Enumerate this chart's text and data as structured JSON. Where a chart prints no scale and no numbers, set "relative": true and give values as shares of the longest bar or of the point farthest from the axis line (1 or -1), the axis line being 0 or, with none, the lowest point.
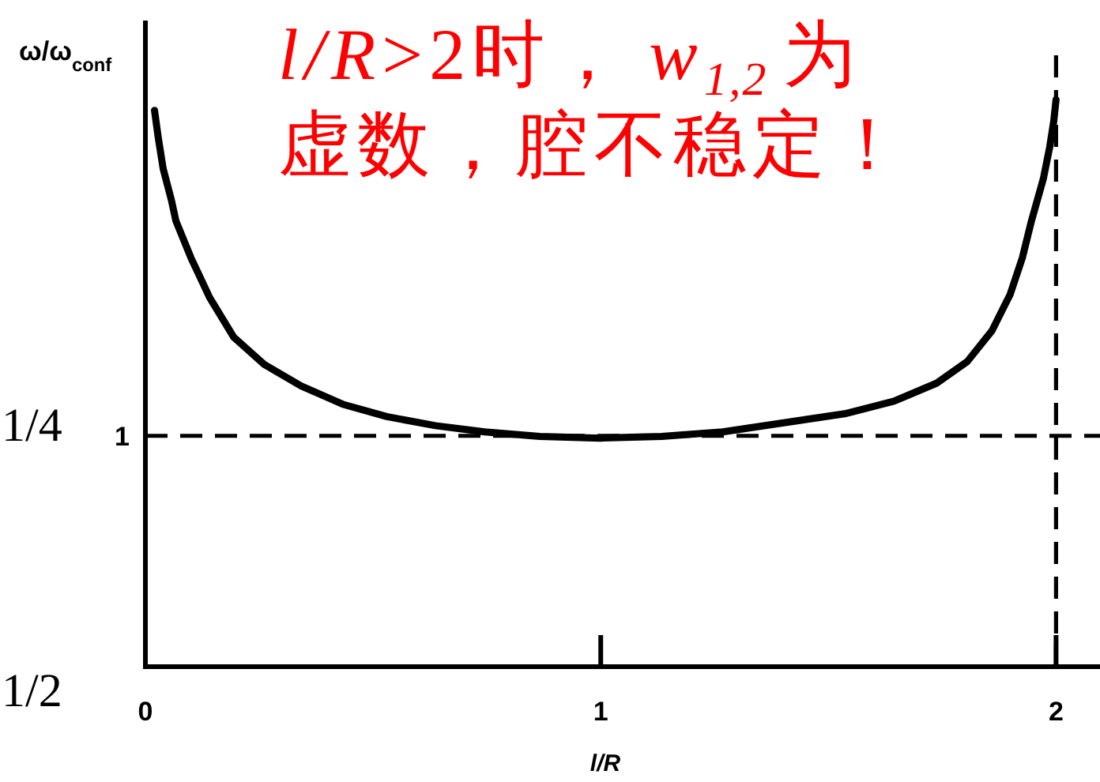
{
  "chart_data": {
    "type": "line",
    "title": "*l/R*>2时，*w*$_{1,2}$为虚数，腔不稳定！",
    "xlabel": "l/R",
    "ylabel": "ω/ω$_{conf}$",
    "relative": true,
    "x": [
      0.02,
      0.028,
      0.039,
      0.057,
      0.067,
      0.1,
      0.141,
      0.194,
      0.261,
      0.342,
      0.436,
      0.53,
      0.637,
      0.745,
      0.866,
      1.0,
      1.134,
      1.268,
      1.402,
      1.536,
      1.644,
      1.738,
      1.805,
      1.859,
      1.899,
      1.926,
      1.946,
      1.972,
      1.986,
      1.995,
      2.0
    ],
    "values": [
      0.981,
      0.934,
      0.878,
      0.823,
      0.786,
      0.721,
      0.651,
      0.581,
      0.533,
      0.495,
      0.462,
      0.441,
      0.425,
      0.414,
      0.406,
      0.403,
      0.406,
      0.414,
      0.43,
      0.446,
      0.468,
      0.5,
      0.538,
      0.592,
      0.656,
      0.721,
      0.786,
      0.86,
      0.916,
      0.962,
      1.0
    ],
    "color": "#000000",
    "xlim": [
      0,
      2.1
    ],
    "xticks": [
      0,
      1,
      2
    ],
    "ref_lines": [
      {
        "axis": "y",
        "value": 0.407,
        "line_style": "dashed",
        "color": "#000000"
      },
      {
        "axis": "x",
        "value": 2,
        "line_style": "dashed",
        "color": "#000000"
      }
    ],
    "annotations": [
      "1/4",
      "1",
      "1/2"
    ]
  }
}
